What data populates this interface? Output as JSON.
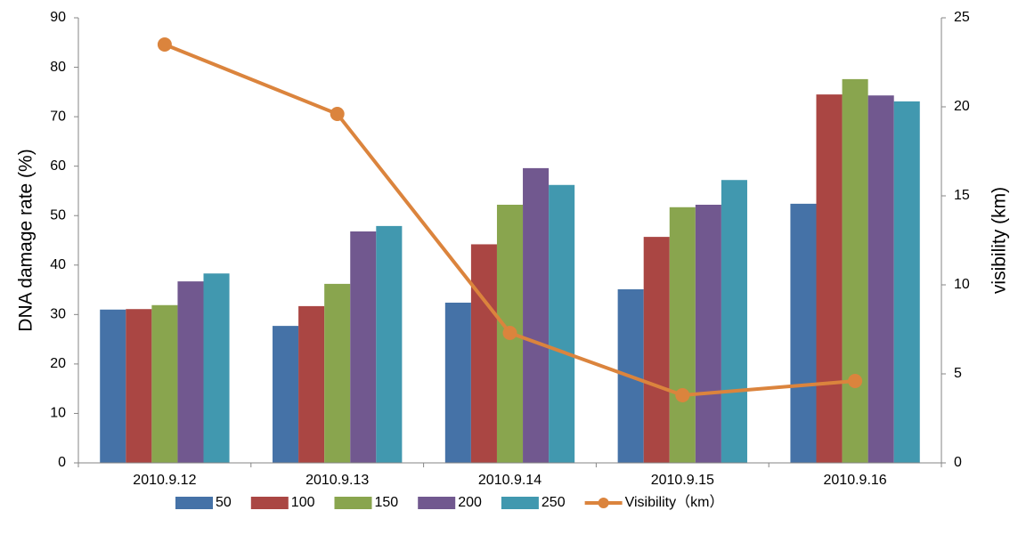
{
  "chart_data": {
    "type": "bar",
    "y_label": "DNA damage rate (%)",
    "y2_label": "visibility (km)",
    "categories": [
      "2010.9.12",
      "2010.9.13",
      "2010.9.14",
      "2010.9.15",
      "2010.9.16"
    ],
    "series": [
      {
        "name": "50",
        "color": "#4572a7",
        "values": [
          31.0,
          27.7,
          32.4,
          35.1,
          52.4
        ]
      },
      {
        "name": "100",
        "color": "#aa4643",
        "values": [
          31.1,
          31.7,
          44.2,
          45.7,
          74.5
        ]
      },
      {
        "name": "150",
        "color": "#89a54e",
        "values": [
          31.9,
          36.2,
          52.2,
          51.7,
          77.6
        ]
      },
      {
        "name": "200",
        "color": "#71588f",
        "values": [
          36.7,
          46.8,
          59.6,
          52.2,
          74.3
        ]
      },
      {
        "name": "250",
        "color": "#4198af",
        "values": [
          38.3,
          47.9,
          56.2,
          57.2,
          73.1
        ]
      },
      {
        "name": "Visibility（km）",
        "color": "#db843d",
        "type": "line",
        "axis": "y2",
        "values": [
          23.5,
          19.6,
          7.3,
          3.8,
          4.6
        ]
      }
    ],
    "ylim": [
      0,
      90
    ],
    "yticks": [
      0,
      10,
      20,
      30,
      40,
      50,
      60,
      70,
      80,
      90
    ],
    "y2lim": [
      0,
      25
    ],
    "y2ticks": [
      0,
      5,
      10,
      15,
      20,
      25
    ],
    "grid": false,
    "legend": "bottom"
  }
}
